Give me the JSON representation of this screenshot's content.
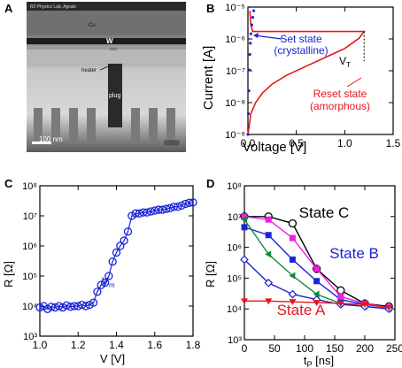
{
  "panels": {
    "a": "A",
    "b": "B",
    "c": "C",
    "d": "D"
  },
  "micrograph": {
    "header": "R2 Physics Lab, Agrate",
    "labels": {
      "cu": "Cu",
      "w": "W",
      "gst": "GST",
      "heater": "heater",
      "plug": "plug"
    },
    "scalebar": "100 nm"
  },
  "colors": {
    "red": "#e8151d",
    "blue": "#1a24d6",
    "magenta": "#ee1ee4",
    "green": "#138a3a",
    "black": "#000000"
  },
  "chart_data": [
    {
      "id": "B",
      "type": "line",
      "xlabel": "Voltage [V]",
      "ylabel": "Current [A]",
      "xlim": [
        0,
        1.5
      ],
      "ylim": [
        1e-09,
        2e-05
      ],
      "yscale": "log",
      "xticks": [
        "0.0",
        "0.5",
        "1.0",
        "1.5"
      ],
      "yticks": [
        "10⁻⁹",
        "10⁻⁸",
        "10⁻⁷",
        "10⁻⁶",
        "10⁻⁵"
      ],
      "series": [
        {
          "name": "reset",
          "x": [
            0.0,
            0.03,
            0.08,
            0.15,
            0.25,
            0.4,
            0.6,
            0.8,
            1.0,
            1.15,
            1.2,
            0.05,
            0.03,
            0.02
          ],
          "y": [
            1e-09,
            5e-09,
            1.2e-08,
            2.5e-08,
            5e-08,
            1e-07,
            2e-07,
            4e-07,
            8e-07,
            1.8e-06,
            3e-06,
            3e-06,
            5e-06,
            1.5e-05
          ]
        },
        {
          "name": "set",
          "x": [
            0.0,
            0.005,
            0.01,
            0.015,
            0.02,
            0.025,
            0.03,
            0.04,
            0.05,
            0.06
          ],
          "y": [
            1e-09,
            5e-09,
            3e-08,
            1.5e-07,
            5e-07,
            1.2e-06,
            2.5e-06,
            5e-06,
            9e-06,
            1.5e-05
          ]
        }
      ],
      "annotations": {
        "set_line1": "Set state",
        "set_line2": "(crystalline)",
        "vt": "V",
        "vt_sub": "T",
        "reset_line1": "Reset state",
        "reset_line2": "(amorphous)"
      }
    },
    {
      "id": "C",
      "type": "line",
      "xlabel": "V [V]",
      "ylabel": "R [Ω]",
      "xlim": [
        1.0,
        1.8
      ],
      "ylim": [
        1000,
        100000000
      ],
      "yscale": "log",
      "xticks": [
        "1.0",
        "1.2",
        "1.4",
        "1.6",
        "1.8"
      ],
      "yticks": [
        "10³",
        "10⁴",
        "10⁵",
        "10⁶",
        "10⁷",
        "10⁸"
      ],
      "x": [
        1.0,
        1.02,
        1.04,
        1.06,
        1.08,
        1.1,
        1.12,
        1.14,
        1.16,
        1.18,
        1.2,
        1.22,
        1.24,
        1.26,
        1.28,
        1.3,
        1.32,
        1.34,
        1.36,
        1.38,
        1.4,
        1.42,
        1.44,
        1.46,
        1.48,
        1.5,
        1.52,
        1.54,
        1.56,
        1.58,
        1.6,
        1.62,
        1.64,
        1.66,
        1.68,
        1.7,
        1.72,
        1.74,
        1.76,
        1.78,
        1.8
      ],
      "y": [
        9000,
        10000,
        8000,
        9500,
        9000,
        10000,
        9000,
        10500,
        9500,
        10000,
        10000,
        11000,
        10000,
        11000,
        13000,
        30000,
        50000,
        60000,
        100000,
        300000,
        600000,
        1000000,
        1500000,
        3000000,
        10000000,
        12000000,
        12000000,
        13000000,
        13000000,
        14000000,
        15000000,
        16000000,
        16000000,
        17000000,
        18000000,
        20000000,
        20000000,
        22000000,
        25000000,
        27000000,
        28000000
      ],
      "annotations": {
        "vm": "V",
        "vm_sub": "m"
      }
    },
    {
      "id": "D",
      "type": "line",
      "xlabel": "t",
      "xlabel_sub": "P",
      "xlabel_unit": " [ns]",
      "ylabel": "R [Ω]",
      "xlim": [
        0,
        250
      ],
      "ylim": [
        1000,
        100000000
      ],
      "yscale": "log",
      "xticks": [
        "0",
        "50",
        "100",
        "150",
        "200",
        "250"
      ],
      "yticks": [
        "10³",
        "10⁴",
        "10⁵",
        "10⁶",
        "10⁷",
        "10⁸"
      ],
      "x": [
        0,
        40,
        80,
        120,
        160,
        200,
        240
      ],
      "series": [
        {
          "name": "State C",
          "color": "#000000",
          "marker": "circle",
          "values": [
            10000000,
            10000000,
            6000000,
            200000,
            40000,
            15000,
            12000
          ]
        },
        {
          "name": "State B",
          "color": "#1a24d6",
          "marker": "square",
          "values": [
            4500000,
            2500000,
            400000,
            80000,
            20000,
            14000,
            11000
          ]
        },
        {
          "name": "",
          "color": "#ee1ee4",
          "marker": "square",
          "values": [
            10000000,
            8000000,
            2000000,
            200000,
            25000,
            15000,
            11000
          ]
        },
        {
          "name": "",
          "color": "#138a3a",
          "marker": "triangle-left",
          "values": [
            8000000,
            600000,
            120000,
            30000,
            15000,
            12000,
            10000
          ]
        },
        {
          "name": "",
          "color": "#1a24d6",
          "marker": "diamond",
          "values": [
            400000,
            70000,
            30000,
            20000,
            14000,
            12000,
            10000
          ]
        },
        {
          "name": "State A",
          "color": "#e8151d",
          "marker": "triangle-down",
          "values": [
            18000,
            18000,
            17000,
            16000,
            15000,
            14000,
            11000
          ]
        }
      ]
    }
  ]
}
